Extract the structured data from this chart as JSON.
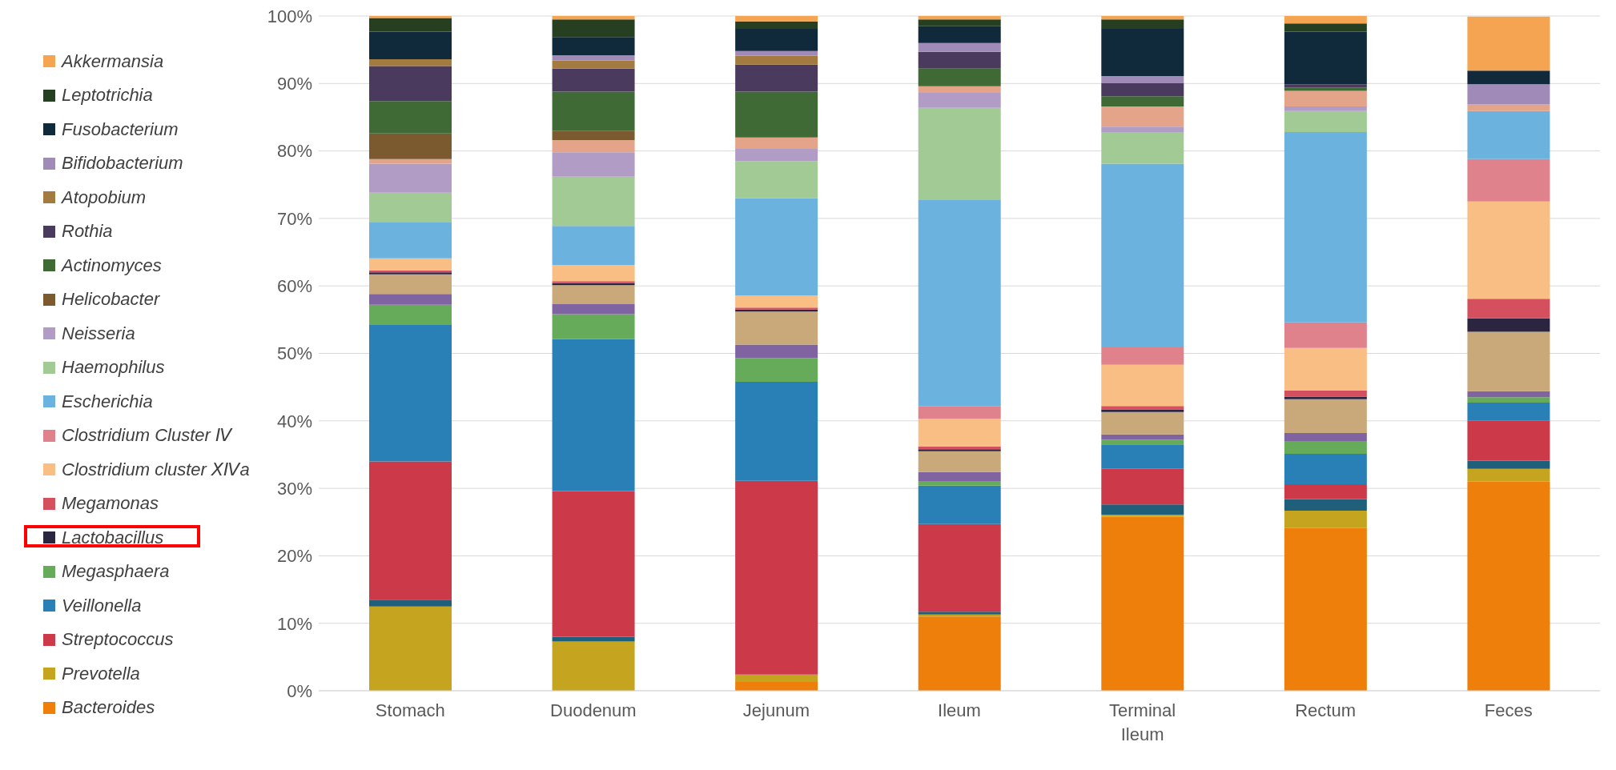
{
  "chart_data": {
    "type": "bar",
    "stacked": true,
    "categories": [
      "Stomach",
      "Duodenum",
      "Jejunum",
      "Ileum",
      "Terminal Ileum",
      "Rectum",
      "Feces"
    ],
    "ylim": [
      0,
      100
    ],
    "yticks": [
      {
        "value": 0,
        "label": "0%"
      },
      {
        "value": 10,
        "label": "10%"
      },
      {
        "value": 20,
        "label": "20%"
      },
      {
        "value": 30,
        "label": "30%"
      },
      {
        "value": 40,
        "label": "40%"
      },
      {
        "value": 50,
        "label": "50%"
      },
      {
        "value": 60,
        "label": "60%"
      },
      {
        "value": 70,
        "label": "70%"
      },
      {
        "value": 80,
        "label": "80%"
      },
      {
        "value": 90,
        "label": "90%"
      },
      {
        "value": 100,
        "label": "100%"
      }
    ],
    "grid": "y",
    "legend": "left",
    "series": [
      {
        "name": "Bacteroides",
        "color": "#ef7f0b",
        "values": [
          0,
          0,
          1.3,
          11.0,
          25.8,
          24.1,
          31.0
        ]
      },
      {
        "name": "Prevotella",
        "color": "#c5a41f",
        "values": [
          12.5,
          7.3,
          1.1,
          0.3,
          0.3,
          2.6,
          1.9
        ]
      },
      {
        "color": "#1f5f7a",
        "values": [
          1.0,
          0.7,
          0,
          0.4,
          1.5,
          1.7,
          1.2
        ]
      },
      {
        "name": "Streptococcus",
        "color": "#cc3a49",
        "values": [
          20.5,
          21.6,
          28.7,
          13.0,
          5.3,
          2.2,
          5.9
        ]
      },
      {
        "name": "Veillonella",
        "color": "#2980b6",
        "values": [
          20.2,
          22.5,
          14.7,
          5.7,
          3.6,
          4.5,
          2.7
        ]
      },
      {
        "name": "Megasphaera",
        "color": "#66ab59",
        "values": [
          3.0,
          3.7,
          3.5,
          0.6,
          0.7,
          1.9,
          0.8
        ]
      },
      {
        "color": "#8064a2",
        "values": [
          1.6,
          1.5,
          2.0,
          1.4,
          0.8,
          1.2,
          0.9
        ]
      },
      {
        "color": "#c9a97a",
        "values": [
          2.9,
          2.8,
          4.9,
          3.1,
          3.3,
          5.0,
          8.8
        ]
      },
      {
        "name": "Lactobacillus",
        "color": "#2c2540",
        "values": [
          0.3,
          0.3,
          0.3,
          0.3,
          0.4,
          0.4,
          2.0
        ]
      },
      {
        "name": "Megamonas",
        "color": "#d4505e",
        "values": [
          0.3,
          0.3,
          0.3,
          0.4,
          0.5,
          0.9,
          2.9
        ]
      },
      {
        "name": "Clostridium cluster ⅩⅣa",
        "color": "#f9be84",
        "values": [
          1.8,
          2.4,
          1.8,
          4.1,
          6.1,
          6.3,
          14.4
        ]
      },
      {
        "name": "Clostridium Cluster Ⅳ",
        "color": "#e0828c",
        "values": [
          0,
          0,
          0,
          1.9,
          2.6,
          3.8,
          6.3
        ]
      },
      {
        "name": "Escherichia",
        "color": "#6bb2de",
        "values": [
          5.3,
          5.8,
          14.4,
          30.6,
          27.2,
          28.2,
          7.1
        ]
      },
      {
        "name": "Haemophilus",
        "color": "#a1ca94",
        "values": [
          4.4,
          7.3,
          5.5,
          13.6,
          4.7,
          3.1,
          0
        ]
      },
      {
        "name": "Neisseria",
        "color": "#b19cc5",
        "values": [
          4.3,
          3.6,
          1.8,
          2.2,
          0.8,
          0.7,
          0
        ]
      },
      {
        "color": "#e3a48a",
        "values": [
          0.7,
          1.8,
          1.7,
          1.0,
          3.0,
          2.3,
          1.0
        ]
      },
      {
        "name": "Helicobacter",
        "color": "#7a5a2e",
        "values": [
          3.8,
          1.4,
          0,
          0,
          0,
          0,
          0
        ]
      },
      {
        "name": "Actinomyces",
        "color": "#3f6a36",
        "values": [
          4.8,
          5.8,
          6.8,
          2.6,
          1.5,
          0.5,
          0
        ]
      },
      {
        "name": "Rothia",
        "color": "#4a3a5e",
        "values": [
          5.2,
          3.4,
          4.0,
          2.5,
          2.0,
          0.5,
          0
        ]
      },
      {
        "name": "Atopobium",
        "color": "#a37a40",
        "values": [
          1.0,
          1.2,
          1.3,
          0,
          0,
          0,
          0
        ]
      },
      {
        "name": "Bifidobacterium",
        "color": "#a08ab8",
        "values": [
          0,
          0.8,
          0.7,
          1.3,
          1.0,
          0,
          3.0
        ]
      },
      {
        "name": "Fusobacterium",
        "color": "#102a3c",
        "values": [
          4.1,
          2.7,
          3.3,
          2.5,
          7.0,
          7.8,
          2.0
        ]
      },
      {
        "name": "Leptotrichia",
        "color": "#263f20",
        "values": [
          2.0,
          2.6,
          1.1,
          1.0,
          1.4,
          1.2,
          0
        ]
      },
      {
        "name": "Akkermansia",
        "color": "#f5a551",
        "values": [
          0.3,
          0.5,
          0.8,
          0.5,
          0.5,
          1.1,
          8.0
        ]
      }
    ]
  }
}
